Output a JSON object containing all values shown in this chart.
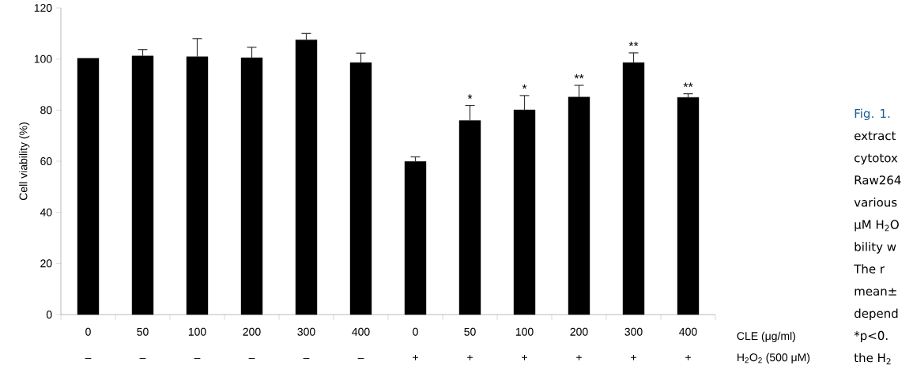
{
  "chart_data": {
    "type": "bar",
    "ylabel": "Cell viability (%)",
    "xlabel": "CLE (μg/ml)",
    "categories": [
      "0",
      "50",
      "100",
      "200",
      "300",
      "400",
      "0",
      "50",
      "100",
      "200",
      "300",
      "400"
    ],
    "values": [
      100.3,
      101.2,
      100.9,
      100.5,
      107.5,
      98.6,
      59.9,
      75.9,
      80.1,
      85.1,
      98.6,
      85.0
    ],
    "errors": [
      null,
      [
        101.2,
        103.7
      ],
      [
        100.9,
        108.0
      ],
      [
        100.5,
        104.6
      ],
      [
        107.5,
        110.0
      ],
      [
        98.6,
        102.3
      ],
      [
        59.9,
        61.7
      ],
      [
        75.9,
        81.8
      ],
      [
        80.1,
        85.7
      ],
      [
        85.1,
        89.7
      ],
      [
        98.6,
        102.4
      ],
      [
        85.0,
        86.4
      ]
    ],
    "value_labels": [
      null,
      null,
      null,
      null,
      null,
      null,
      null,
      "*",
      "*",
      "**",
      "**",
      "**"
    ],
    "color": "#000000",
    "ylim": [
      0,
      120
    ],
    "yticks": [
      0,
      20,
      40,
      60,
      80,
      100,
      120
    ],
    "grid": false,
    "annotations": [
      "–",
      "–",
      "–",
      "–",
      "–",
      "–",
      "+",
      "+",
      "+",
      "+",
      "+",
      "+",
      "H$_{2}$O$_{2}$ (500 μM)",
      "Fig. 1.",
      "extract",
      "cytotox",
      "Raw264",
      "various",
      "μM H$_{2}$O",
      "bility w",
      "The r",
      "mean±",
      "depend",
      "*p<0.",
      "the H$_{2}$"
    ]
  }
}
